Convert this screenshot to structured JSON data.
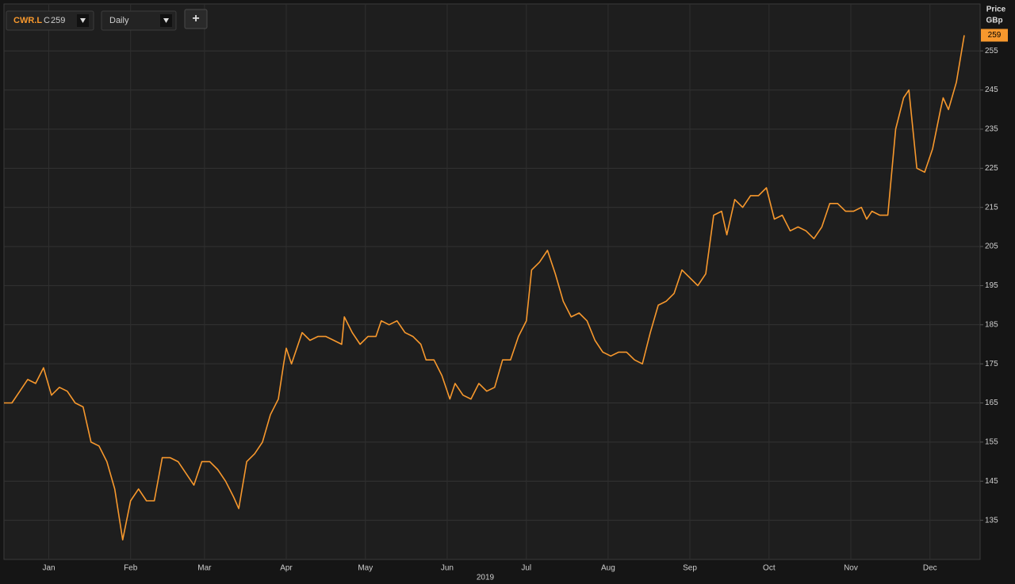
{
  "toolbar": {
    "ticker": "CWR.L",
    "close_prefix": "C",
    "interval": "Daily",
    "add_button": "+"
  },
  "chart_data": {
    "type": "line",
    "ylabel_lines": [
      "Price",
      "GBp"
    ],
    "xlabel": "2019",
    "xlim": [
      -2,
      368
    ],
    "xticks": [
      {
        "value": 15,
        "label": "Jan"
      },
      {
        "value": 46,
        "label": "Feb"
      },
      {
        "value": 74,
        "label": "Mar"
      },
      {
        "value": 105,
        "label": "Apr"
      },
      {
        "value": 135,
        "label": "May"
      },
      {
        "value": 166,
        "label": "Jun"
      },
      {
        "value": 196,
        "label": "Jul"
      },
      {
        "value": 227,
        "label": "Aug"
      },
      {
        "value": 258,
        "label": "Sep"
      },
      {
        "value": 288,
        "label": "Oct"
      },
      {
        "value": 319,
        "label": "Nov"
      },
      {
        "value": 349,
        "label": "Dec"
      }
    ],
    "ylim": [
      125,
      267
    ],
    "yticks": [
      135,
      145,
      155,
      165,
      175,
      185,
      195,
      205,
      215,
      225,
      235,
      245,
      255
    ],
    "grid": true,
    "series": [
      {
        "name": "CWR.L",
        "color": "#f7982d",
        "x": [
          -2,
          1,
          4,
          7,
          10,
          13,
          16,
          19,
          22,
          25,
          28,
          31,
          34,
          37,
          40,
          43,
          46,
          49,
          52,
          55,
          58,
          61,
          64,
          67,
          70,
          73,
          76,
          79,
          82,
          85,
          87,
          90,
          93,
          96,
          99,
          102,
          104,
          105,
          107,
          111,
          114,
          117,
          120,
          123,
          126,
          127,
          130,
          133,
          136,
          139,
          141,
          144,
          147,
          150,
          153,
          156,
          158,
          161,
          164,
          167,
          169,
          172,
          175,
          178,
          181,
          184,
          187,
          190,
          193,
          196,
          198,
          201,
          204,
          207,
          210,
          213,
          216,
          219,
          222,
          225,
          228,
          231,
          234,
          237,
          240,
          243,
          246,
          249,
          252,
          255,
          258,
          261,
          264,
          267,
          270,
          272,
          275,
          278,
          281,
          284,
          287,
          290,
          293,
          296,
          299,
          302,
          305,
          308,
          311,
          314,
          317,
          320,
          323,
          325,
          327,
          330,
          333,
          336,
          339,
          341,
          344,
          347,
          350,
          353,
          354,
          356,
          359,
          362
        ],
        "values": [
          165,
          165,
          168,
          171,
          170,
          174,
          167,
          169,
          168,
          165,
          164,
          155,
          154,
          150,
          143,
          130,
          140,
          143,
          140,
          140,
          151,
          151,
          150,
          147,
          144,
          150,
          150,
          148,
          145,
          141,
          138,
          150,
          152,
          155,
          162,
          166,
          175,
          179,
          175,
          183,
          181,
          182,
          182,
          181,
          180,
          187,
          183,
          180,
          182,
          182,
          186,
          185,
          186,
          183,
          182,
          180,
          176,
          176,
          172,
          166,
          170,
          167,
          166,
          170,
          168,
          169,
          176,
          176,
          182,
          186,
          199,
          201,
          204,
          198,
          191,
          187,
          188,
          186,
          181,
          178,
          177,
          178,
          178,
          176,
          175,
          183,
          190,
          191,
          193,
          199,
          197,
          195,
          198,
          213,
          214,
          208,
          217,
          215,
          218,
          218,
          220,
          212,
          213,
          209,
          210,
          209,
          207,
          210,
          216,
          216,
          214,
          214,
          215,
          212,
          214,
          213,
          213,
          235,
          243,
          245,
          225,
          224,
          230,
          240,
          243,
          240,
          247,
          259
        ]
      }
    ]
  }
}
